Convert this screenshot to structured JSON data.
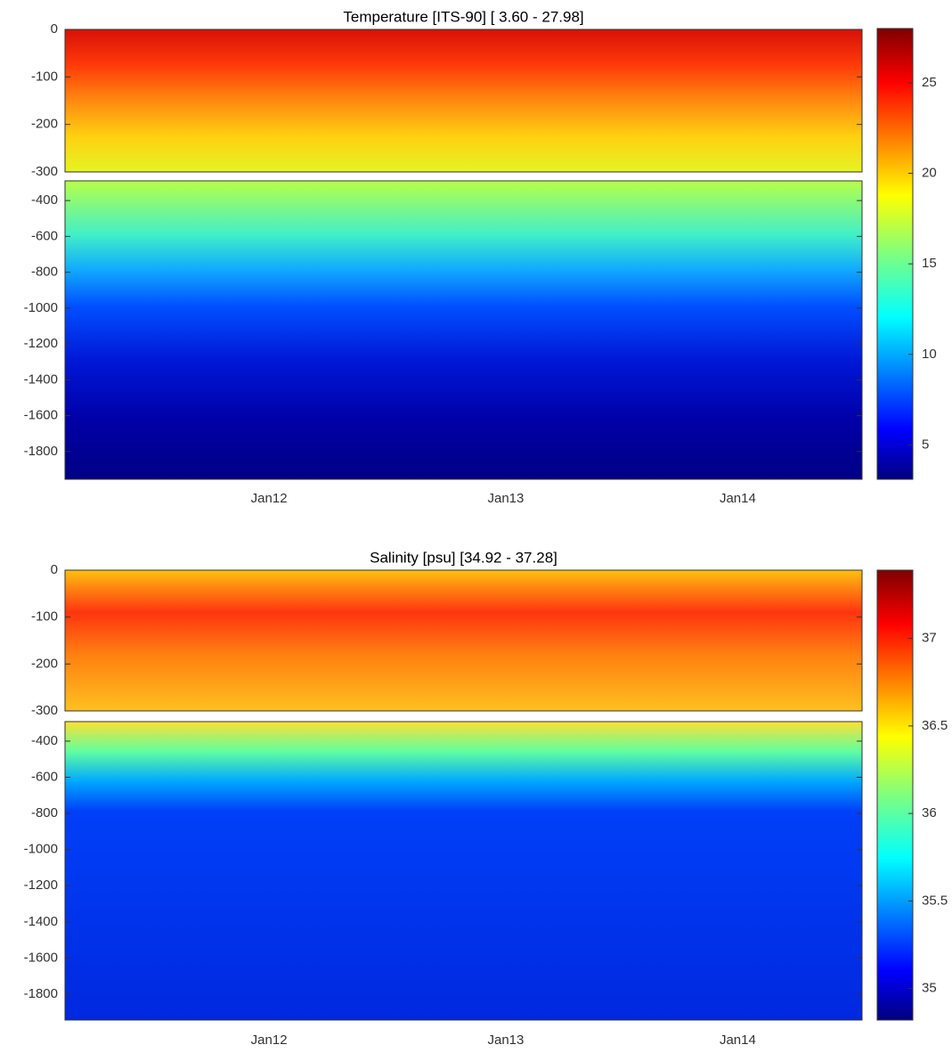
{
  "chart_data": [
    {
      "type": "contour",
      "title": "Temperature [ITS-90]    [ 3.60 - 27.98]",
      "upper": {
        "ylim": [
          -300,
          0
        ],
        "yticks": [
          0,
          -100,
          -200,
          -300
        ]
      },
      "lower": {
        "ylim": [
          -1955,
          -290
        ],
        "yticks": [
          -400,
          -600,
          -800,
          -1000,
          -1200,
          -1400,
          -1600,
          -1800
        ]
      },
      "x_tick_labels": [
        "Jan12",
        "Jan13",
        "Jan14"
      ],
      "colorbar": {
        "lim": [
          3.1,
          28
        ],
        "ticks": [
          5,
          10,
          15,
          20,
          25
        ]
      }
    },
    {
      "type": "contour",
      "title": "Salinity [psu]    [34.92 - 37.28]",
      "upper": {
        "ylim": [
          -300,
          0
        ],
        "yticks": [
          0,
          -100,
          -200,
          -300
        ]
      },
      "lower": {
        "ylim": [
          -1943,
          -292
        ],
        "yticks": [
          -400,
          -600,
          -800,
          -1000,
          -1200,
          -1400,
          -1600,
          -1800
        ]
      },
      "x_tick_labels": [
        "Jan12",
        "Jan13",
        "Jan14"
      ],
      "colorbar": {
        "lim": [
          34.82,
          37.39
        ],
        "ticks": [
          35,
          35.5,
          36,
          36.5,
          37
        ]
      }
    }
  ]
}
